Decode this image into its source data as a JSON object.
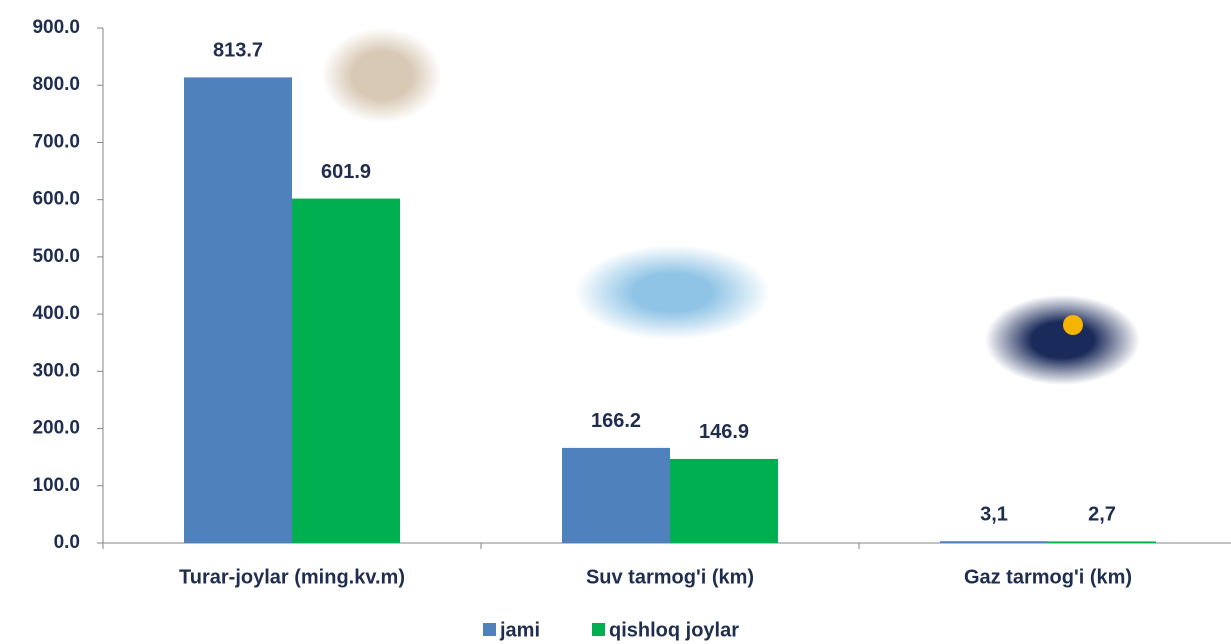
{
  "chart_data": {
    "type": "bar",
    "categories": [
      "Turar-joylar (ming.kv.m)",
      "Suv tarmog'i (km)",
      "Gaz tarmog'i (km)"
    ],
    "series": [
      {
        "name": "jami",
        "color": "#4f81bd",
        "values": [
          813.7,
          166.2,
          3.1
        ],
        "value_labels": [
          "813.7",
          "166.2",
          "3,1"
        ]
      },
      {
        "name": "qishloq joylar",
        "color": "#00b050",
        "values": [
          601.9,
          146.9,
          2.7
        ],
        "value_labels": [
          "601.9",
          "146.9",
          "2,7"
        ]
      }
    ],
    "ylim": [
      0,
      900
    ],
    "yticks": [
      {
        "value": 0,
        "label": "0.0"
      },
      {
        "value": 100,
        "label": "100.0"
      },
      {
        "value": 200,
        "label": "200.0"
      },
      {
        "value": 300,
        "label": "300.0"
      },
      {
        "value": 400,
        "label": "400.0"
      },
      {
        "value": 500,
        "label": "500.0"
      },
      {
        "value": 600,
        "label": "600.0"
      },
      {
        "value": 700,
        "label": "700.0"
      },
      {
        "value": 800,
        "label": "800.0"
      },
      {
        "value": 900,
        "label": "900.0"
      }
    ],
    "grid": false,
    "legend": "bottom"
  }
}
